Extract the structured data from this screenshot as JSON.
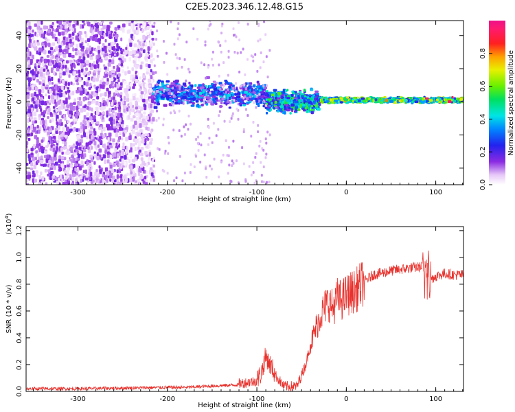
{
  "title": "C2E5.2023.346.12.48.G15",
  "colors": {
    "snr_line": "#e8322d",
    "scatter_low": "#d9b8f7",
    "scatter_mid": "#7a1de0",
    "axis": "#000000"
  },
  "chart_data": [
    {
      "type": "heatmap",
      "title": "C2E5.2023.346.12.48.G15",
      "xlabel": "Height of straight line (km)",
      "ylabel": "Frequency (Hz)",
      "xlim": [
        -358,
        131
      ],
      "ylim": [
        -50,
        49
      ],
      "x_ticks": [
        -300,
        -200,
        -100,
        0,
        100
      ],
      "x_tick_labels": [
        "-300",
        "-200",
        "-100",
        "0",
        "100"
      ],
      "y_ticks": [
        -40,
        -20,
        0,
        20,
        40
      ],
      "y_tick_labels": [
        "-40",
        "-20",
        "0",
        "20",
        "40"
      ],
      "colorbar": {
        "label": "Normalized spectral amplitude",
        "range": [
          0,
          1
        ],
        "ticks": [
          0.0,
          0.2,
          0.4,
          0.6,
          0.8
        ],
        "tick_labels": [
          "0.0",
          "0.2",
          "0.4",
          "0.6",
          "0.8"
        ],
        "colormap": "rainbow (white-purple-blue-cyan-green-yellow-red-magenta)"
      },
      "grid": false,
      "regions": [
        {
          "x_range": [
            -358,
            -215
          ],
          "freq_range": [
            -50,
            49
          ],
          "amplitude": 0.1
        },
        {
          "x_range": [
            -215,
            -90
          ],
          "freq_center": 5,
          "freq_halfwidth": 10,
          "amplitude": 0.25
        },
        {
          "x_range": [
            -90,
            -30
          ],
          "freq_center": 0,
          "freq_halfwidth": 8,
          "amplitude": 0.35
        },
        {
          "x_range": [
            -30,
            131
          ],
          "freq_center": 1,
          "freq_halfwidth": 2,
          "amplitude": 0.6
        }
      ]
    },
    {
      "type": "line",
      "xlabel": "Height of straight line (km)",
      "ylabel": "SNR (10 * v/v)",
      "y_scale_label": "(x10^4)",
      "scale_base": "x10",
      "scale_exp": "4",
      "xlim": [
        -358,
        131
      ],
      "ylim": [
        0,
        1.23
      ],
      "x_ticks": [
        -300,
        -200,
        -100,
        0,
        100
      ],
      "x_tick_labels": [
        "-300",
        "-200",
        "-100",
        "0",
        "100"
      ],
      "y_ticks": [
        0.0,
        0.2,
        0.4,
        0.6,
        0.8,
        1.0,
        1.2
      ],
      "y_tick_labels": [
        "0.0",
        "0.2",
        "0.4",
        "0.6",
        "0.8",
        "1.0",
        "1.2"
      ],
      "grid": false,
      "series": [
        {
          "x": [
            -358,
            -300,
            -250,
            -200,
            -180,
            -150,
            -120,
            -100,
            -95,
            -90,
            -85,
            -80,
            -70,
            -55,
            -45,
            -40,
            -35,
            -30,
            -25,
            -20,
            -15,
            -10,
            -5,
            0,
            10,
            20,
            30,
            50,
            70,
            85,
            90,
            95,
            100,
            110,
            120,
            131
          ],
          "y": [
            0.02,
            0.02,
            0.025,
            0.03,
            0.03,
            0.04,
            0.05,
            0.07,
            0.12,
            0.25,
            0.18,
            0.12,
            0.03,
            0.03,
            0.2,
            0.35,
            0.45,
            0.55,
            0.62,
            0.67,
            0.62,
            0.7,
            0.68,
            0.72,
            0.75,
            0.82,
            0.87,
            0.9,
            0.92,
            0.93,
            0.88,
            0.84,
            0.86,
            0.88,
            0.87,
            0.87
          ]
        }
      ]
    }
  ]
}
